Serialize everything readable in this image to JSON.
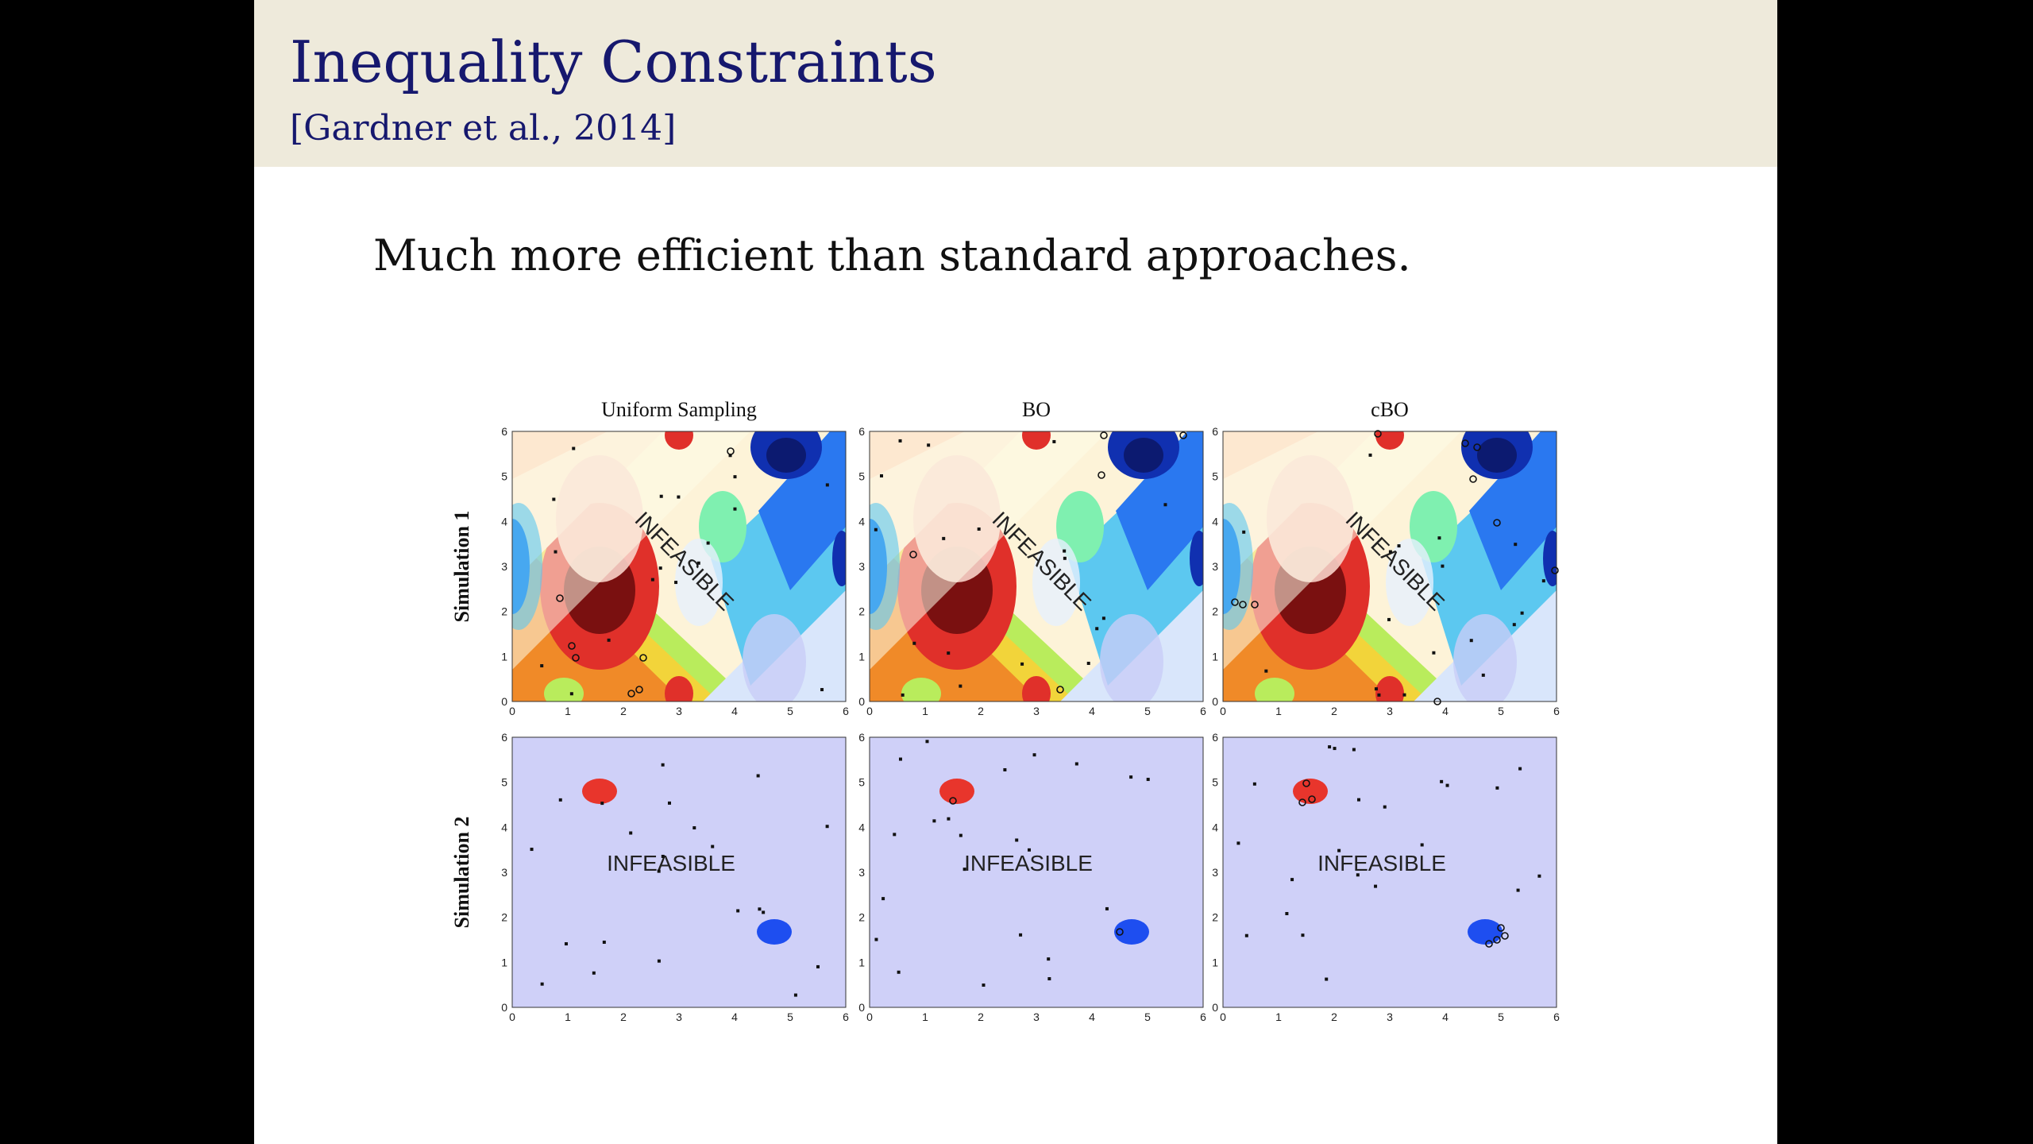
{
  "slide": {
    "title": "Inequality Constraints",
    "subtitle": "[Gardner et al., 2014]",
    "body": "Much more efficient than standard approaches."
  },
  "figure": {
    "column_titles": [
      "Uniform Sampling",
      "BO",
      "cBO"
    ],
    "row_labels": [
      "Simulation 1",
      "Simulation 2"
    ],
    "region_label": "INFEASIBLE",
    "ticks": [
      "0",
      "1",
      "2",
      "3",
      "4",
      "5",
      "6"
    ]
  }
}
